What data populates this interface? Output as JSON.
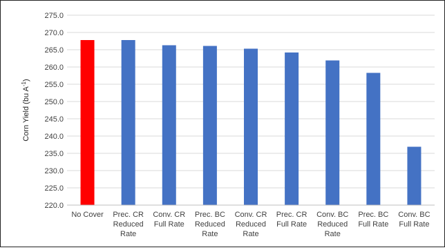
{
  "chart_data": {
    "type": "bar",
    "title": "",
    "xlabel": "",
    "ylabel": "Corn Yield (bu A",
    "ylabel_sup": "-1",
    "ylabel_close": ")",
    "ylim": [
      220.0,
      275.0
    ],
    "yticks": [
      "220.0",
      "225.0",
      "230.0",
      "235.0",
      "240.0",
      "245.0",
      "250.0",
      "255.0",
      "260.0",
      "265.0",
      "270.0",
      "275.0"
    ],
    "grid": true,
    "legend": "none",
    "categories": [
      [
        "No Cover"
      ],
      [
        "Prec. CR",
        "Reduced",
        "Rate"
      ],
      [
        "Conv. CR",
        "Full Rate"
      ],
      [
        "Prec. BC",
        "Reduced",
        "Rate"
      ],
      [
        "Conv. CR",
        "Reduced",
        "Rate"
      ],
      [
        "Prec. CR",
        "Full Rate"
      ],
      [
        "Conv. BC",
        "Reduced",
        "Rate"
      ],
      [
        "Prec. BC",
        "Full Rate"
      ],
      [
        "Conv. BC",
        "Full Rate"
      ]
    ],
    "values": [
      267.8,
      267.8,
      266.3,
      266.1,
      265.3,
      264.2,
      261.9,
      258.3,
      236.9
    ],
    "colors": [
      "#ff0000",
      "#4472c4",
      "#4472c4",
      "#4472c4",
      "#4472c4",
      "#4472c4",
      "#4472c4",
      "#4472c4",
      "#4472c4"
    ]
  }
}
